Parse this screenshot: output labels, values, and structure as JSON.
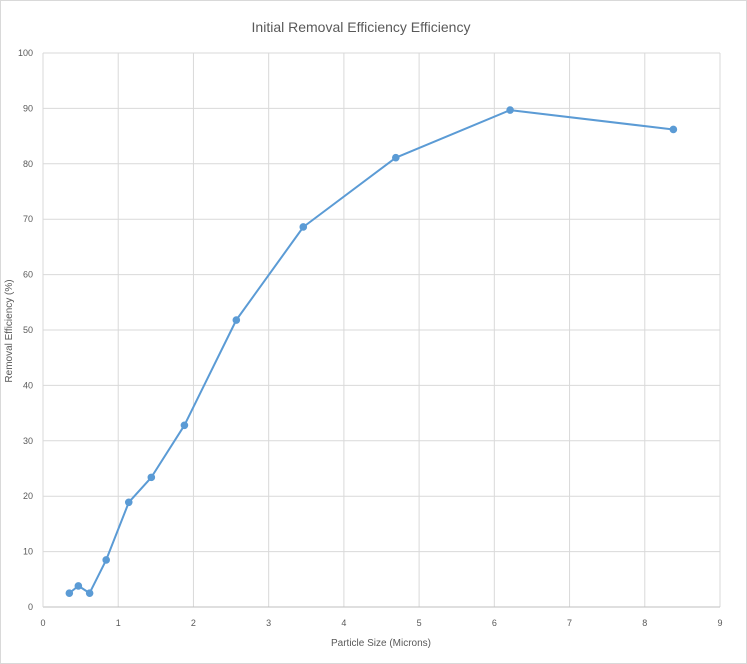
{
  "chart_data": {
    "type": "line",
    "title": "Initial Removal Efficiency Efficiency",
    "xlabel": "Particle Size (Microns)",
    "ylabel": "Removal Efficiency (%)",
    "xlim": [
      0,
      9
    ],
    "ylim": [
      0,
      100
    ],
    "xticks": [
      0,
      1,
      2,
      3,
      4,
      5,
      6,
      7,
      8,
      9
    ],
    "yticks": [
      0,
      10,
      20,
      30,
      40,
      50,
      60,
      70,
      80,
      90,
      100
    ],
    "grid": true,
    "legend": "none",
    "series": [
      {
        "color": "#5b9bd5",
        "x": [
          0.35,
          0.47,
          0.62,
          0.84,
          1.14,
          1.44,
          1.88,
          2.57,
          3.46,
          4.69,
          6.21,
          8.38
        ],
        "y": [
          2.5,
          3.8,
          2.5,
          8.5,
          18.9,
          23.4,
          32.8,
          51.8,
          68.6,
          81.1,
          89.7,
          86.2
        ]
      }
    ]
  }
}
